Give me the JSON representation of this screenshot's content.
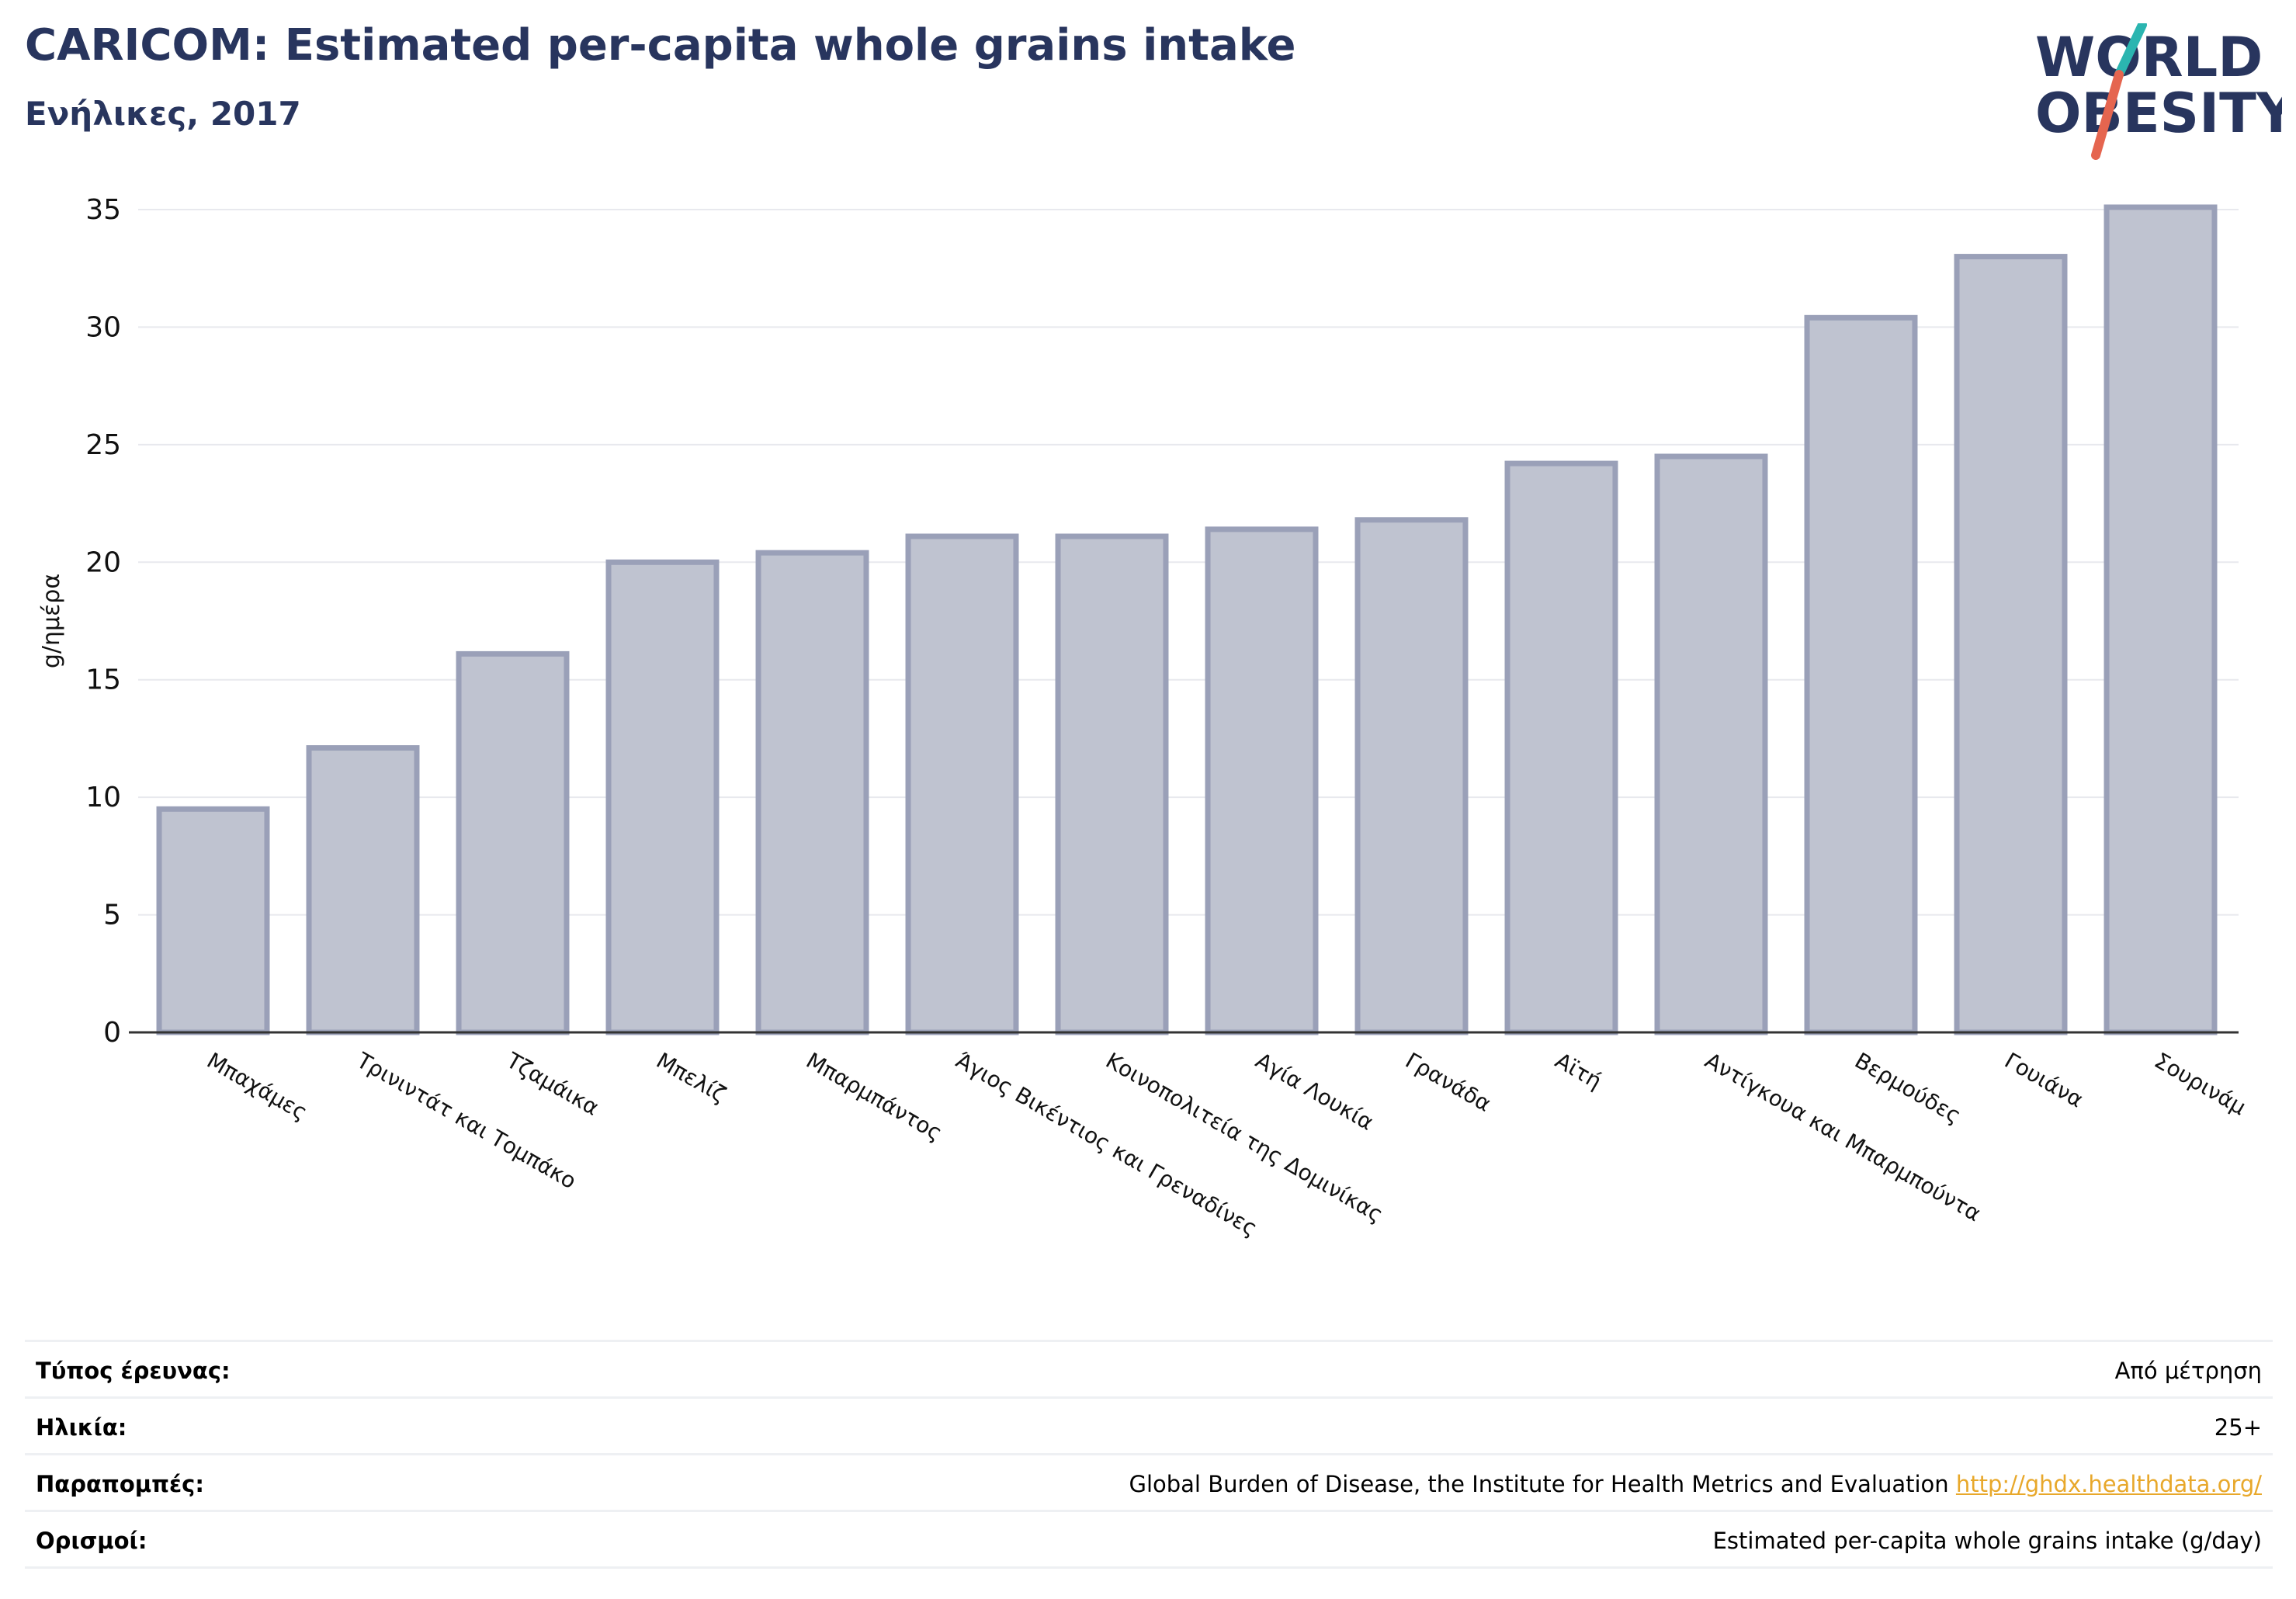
{
  "header": {
    "title": "CARICOM: Estimated per-capita whole grains intake",
    "subtitle": "Ενήλικες, 2017"
  },
  "logo": {
    "line1": "WORLD",
    "line2": "OBESITY",
    "text_color": "#28355e",
    "slash_colors": [
      "#2bb5b0",
      "#e5654f"
    ]
  },
  "chart_data": {
    "type": "bar",
    "categories": [
      "Μπαχάμες",
      "Τρινιντάτ και Τομπάκο",
      "Τζαμάικα",
      "Μπελίζ",
      "Μπαρμπάντος",
      "Άγιος Βικέντιος και Γρεναδίνες",
      "Κοινοπολιτεία της Δομινίκας",
      "Αγία Λουκία",
      "Γρανάδα",
      "Αϊτή",
      "Αντίγκουα και Μπαρμπούντα",
      "Βερμούδες",
      "Γουιάνα",
      "Σουρινάμ"
    ],
    "values": [
      9.5,
      12.1,
      16.1,
      20.0,
      20.4,
      21.1,
      21.1,
      21.4,
      21.8,
      24.2,
      24.5,
      30.4,
      33.0,
      35.1
    ],
    "ylabel": "g/ημέρα",
    "ylim": [
      0,
      35
    ],
    "yticks": [
      0,
      5,
      10,
      15,
      20,
      25,
      30,
      35
    ],
    "grid": true,
    "bar_fill": "#bfc3d0",
    "bar_edge": "#9aa0b8"
  },
  "meta": {
    "rows": [
      {
        "label": "Τύπος έρευνας:",
        "value": "Από μέτρηση"
      },
      {
        "label": "Ηλικία:",
        "value": "25+"
      },
      {
        "label": "Παραπομπές:",
        "value": "Global Burden of Disease, the Institute for Health Metrics and Evaluation ",
        "link": "http://ghdx.healthdata.org/"
      },
      {
        "label": "Ορισμοί:",
        "value": "Estimated per-capita whole grains intake (g/day)"
      }
    ]
  }
}
